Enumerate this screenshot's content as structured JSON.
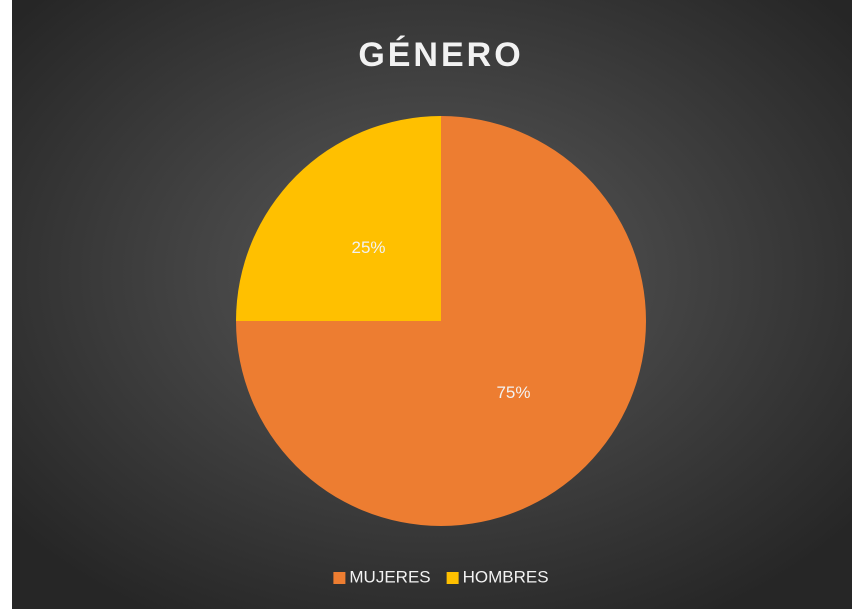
{
  "chart_data": {
    "type": "pie",
    "title": "GÉNERO",
    "categories": [
      "MUJERES",
      "HOMBRES"
    ],
    "values": [
      75,
      25
    ],
    "value_labels": [
      "75%",
      "25%"
    ],
    "colors": [
      "#ed7d31",
      "#ffc000"
    ],
    "legend": "bottom"
  }
}
